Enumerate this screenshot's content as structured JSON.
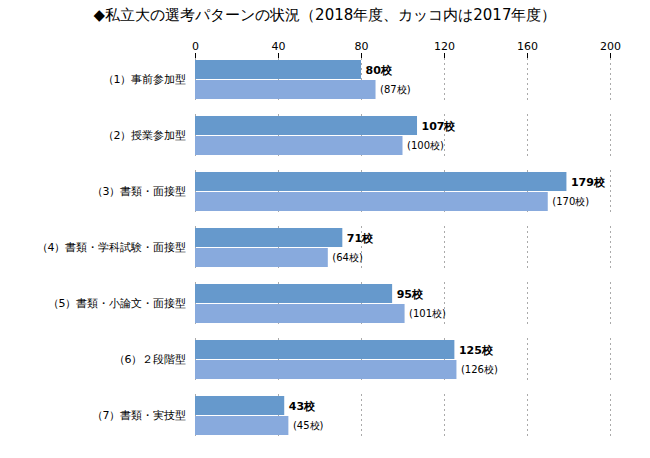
{
  "chart_data": {
    "type": "bar",
    "orientation": "horizontal",
    "title": "◆私立大の選考パターンの状況（2018年度、カッコ内は2017年度）",
    "categories": [
      "（1）事前参加型",
      "（2）授業参加型",
      "（3）書類・面接型",
      "（4）書類・学科試験・面接型",
      "（5）書類・小論文・面接型",
      "（6）２段階型",
      "（7）書類・実技型"
    ],
    "series": [
      {
        "color": "#6699CC",
        "values": [
          80,
          107,
          179,
          71,
          95,
          125,
          43
        ],
        "value_labels": [
          "80校",
          "107校",
          "179校",
          "71校",
          "95校",
          "125校",
          "43校"
        ]
      },
      {
        "color": "#88AADD",
        "values": [
          87,
          100,
          170,
          64,
          101,
          126,
          45
        ],
        "value_labels": [
          "(87校)",
          "(100校)",
          "(170校)",
          "(64校)",
          "(101校)",
          "(126校)",
          "(45校)"
        ]
      }
    ],
    "xlim": [
      0,
      200
    ],
    "xticks": [
      0,
      40,
      80,
      120,
      160,
      200
    ],
    "grid": true,
    "data_labels": true
  }
}
